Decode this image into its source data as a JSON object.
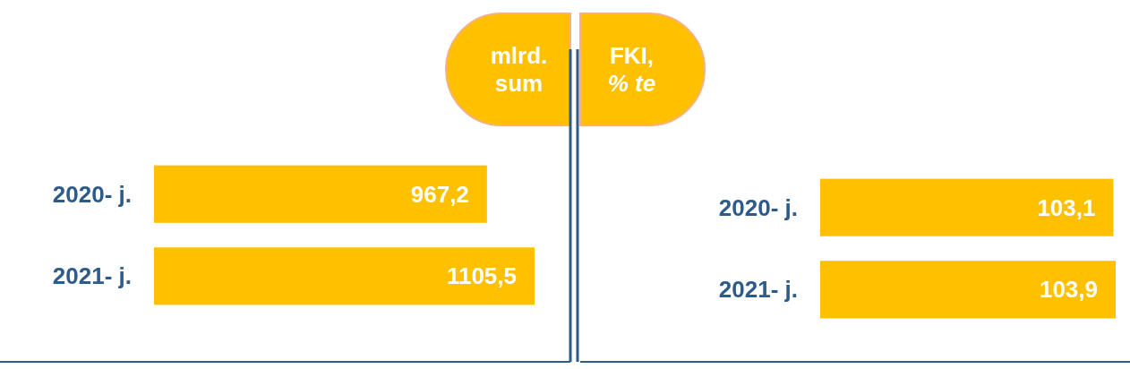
{
  "chart_data": [
    {
      "type": "bar",
      "orientation": "horizontal",
      "title": "mlrd. sum",
      "categories": [
        "2020- j.",
        "2021- j."
      ],
      "values": [
        967.2,
        1105.5
      ],
      "value_labels": [
        "967,2",
        "1105,5"
      ],
      "color": "#ffc000"
    },
    {
      "type": "bar",
      "orientation": "horizontal",
      "title": "FKI, % te",
      "categories": [
        "2020- j.",
        "2021- j."
      ],
      "values": [
        103.1,
        103.9
      ],
      "value_labels": [
        "103,1",
        "103,9"
      ],
      "color": "#ffc000"
    }
  ]
}
